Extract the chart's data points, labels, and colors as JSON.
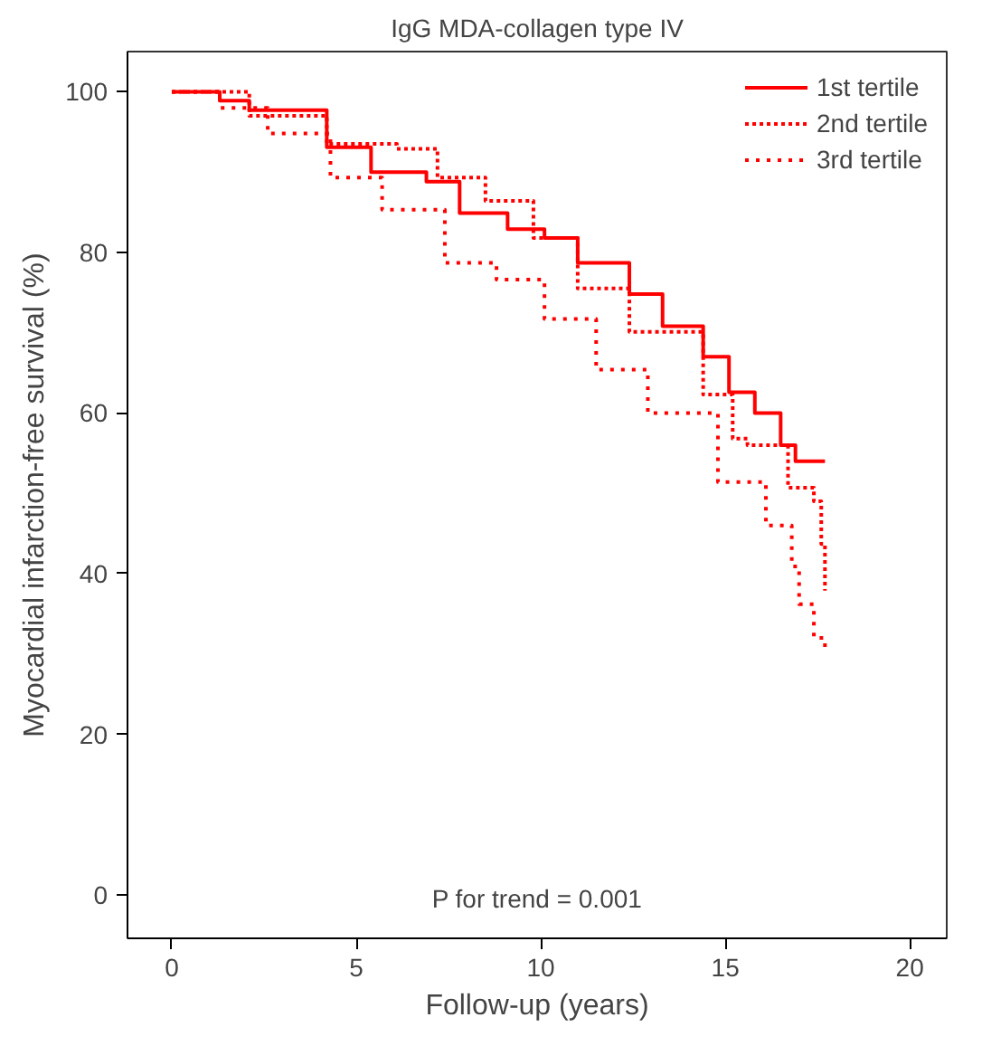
{
  "chart_data": {
    "type": "step",
    "title": "IgG MDA-collagen type IV",
    "xlabel": "Follow-up (years)",
    "ylabel": "Myocardial infarction-free survival (%)",
    "xlim": [
      -1.2,
      21
    ],
    "ylim": [
      -5.4,
      105
    ],
    "xticks": [
      0,
      5,
      10,
      15,
      20
    ],
    "yticks": [
      0,
      20,
      40,
      60,
      80,
      100
    ],
    "grid": false,
    "legend": "top right",
    "marker": "none",
    "annotations": [
      "P for trend = 0.001"
    ],
    "series": [
      {
        "name": "1st tertile",
        "color": "#ff0000",
        "line_style": "solid",
        "x": [
          0,
          1.3,
          2.1,
          4.2,
          5.4,
          6.9,
          7.8,
          9.1,
          10.1,
          11,
          12.4,
          13.3,
          14.4,
          14.8,
          15.1,
          15.8,
          16.5,
          16.9,
          17.7
        ],
        "values": [
          100,
          98.9,
          97.7,
          93.1,
          90,
          88.8,
          84.9,
          82.9,
          81.8,
          78.7,
          74.8,
          70.8,
          67,
          67,
          62.6,
          60,
          56,
          54,
          54
        ]
      },
      {
        "name": "2nd tertile",
        "color": "#ff0000",
        "line_style": "dashed",
        "x": [
          0,
          2.1,
          4.2,
          6.1,
          7.2,
          8.5,
          9.8,
          11,
          12.4,
          14.4,
          15.2,
          15.6,
          16.7,
          17.4,
          17.6,
          17.7
        ],
        "values": [
          100,
          97,
          93.5,
          92.9,
          89.3,
          86.4,
          81.8,
          75.5,
          70.1,
          62.3,
          56.8,
          56,
          50.7,
          49,
          43.7,
          37.9
        ]
      },
      {
        "name": "3rd tertile",
        "color": "#ff0000",
        "line_style": "dotted",
        "x": [
          0,
          1.3,
          2.6,
          4.3,
          5.7,
          7.4,
          8.8,
          10.1,
          11.5,
          12.9,
          14.8,
          16.1,
          16.8,
          17,
          17.4,
          17.7
        ],
        "values": [
          100,
          98,
          94.8,
          89.3,
          85.3,
          78.7,
          76.6,
          71.7,
          65.4,
          60,
          51.4,
          46,
          40.9,
          36.2,
          32,
          30.8
        ]
      }
    ]
  }
}
